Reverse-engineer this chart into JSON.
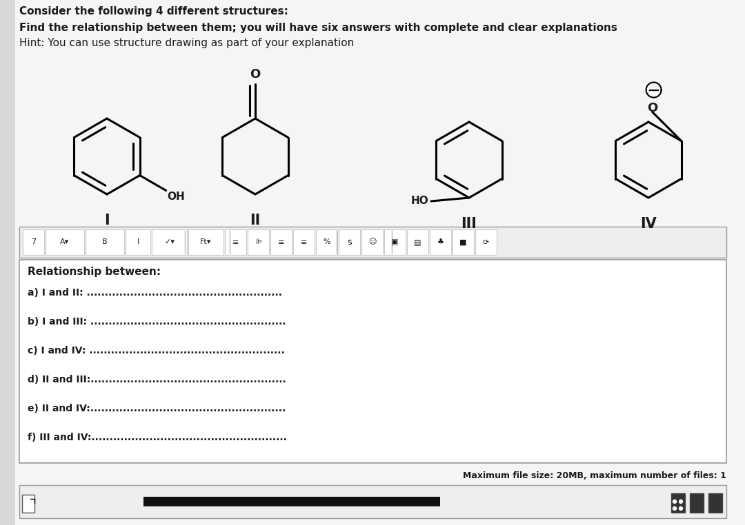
{
  "title_line1": "Consider the following 4 different structures:",
  "title_line2": "Find the relationship between them; you will have six answers with complete and clear explanations",
  "title_line3": "Hint: You can use structure drawing as part of your explanation",
  "labels": [
    "I",
    "II",
    "III",
    "IV"
  ],
  "relationship_header": "Relationship between:",
  "items": [
    "a) I and II: ......................................................",
    "b) I and III: ......................................................",
    "c) I and IV: ......................................................",
    "d) II and III:......................................................",
    "e) II and IV:......................................................",
    "f) III and IV:......................................................"
  ],
  "footer": "Maximum file size: 20MB, maximum number of files: 1",
  "bg_color": "#f5f5f5",
  "box_bg": "#ffffff",
  "text_color": "#1a1a1a",
  "toolbar_bg": "#eeeeee",
  "border_color": "#999999"
}
